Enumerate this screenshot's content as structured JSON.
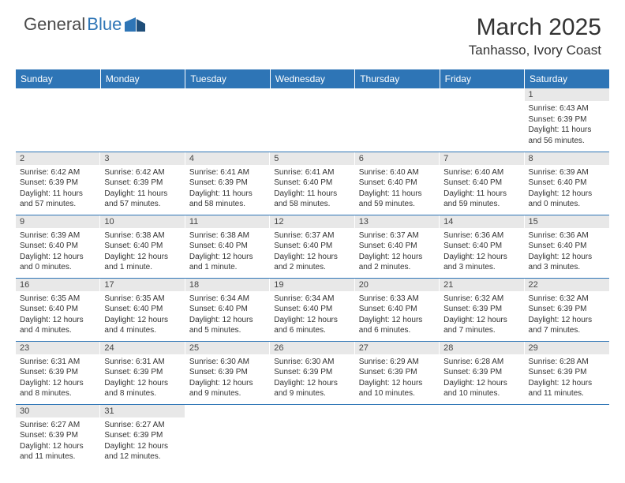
{
  "logo": {
    "text1": "General",
    "text2": "Blue",
    "color1": "#4a4a4a",
    "color2": "#2e75b6"
  },
  "title": "March 2025",
  "location": "Tanhasso, Ivory Coast",
  "headers": [
    "Sunday",
    "Monday",
    "Tuesday",
    "Wednesday",
    "Thursday",
    "Friday",
    "Saturday"
  ],
  "header_bg": "#2e75b6",
  "daynum_bg": "#e8e8e8",
  "border_color": "#2e75b6",
  "weeks": [
    [
      null,
      null,
      null,
      null,
      null,
      null,
      {
        "n": "1",
        "l1": "Sunrise: 6:43 AM",
        "l2": "Sunset: 6:39 PM",
        "l3": "Daylight: 11 hours",
        "l4": "and 56 minutes."
      }
    ],
    [
      {
        "n": "2",
        "l1": "Sunrise: 6:42 AM",
        "l2": "Sunset: 6:39 PM",
        "l3": "Daylight: 11 hours",
        "l4": "and 57 minutes."
      },
      {
        "n": "3",
        "l1": "Sunrise: 6:42 AM",
        "l2": "Sunset: 6:39 PM",
        "l3": "Daylight: 11 hours",
        "l4": "and 57 minutes."
      },
      {
        "n": "4",
        "l1": "Sunrise: 6:41 AM",
        "l2": "Sunset: 6:39 PM",
        "l3": "Daylight: 11 hours",
        "l4": "and 58 minutes."
      },
      {
        "n": "5",
        "l1": "Sunrise: 6:41 AM",
        "l2": "Sunset: 6:40 PM",
        "l3": "Daylight: 11 hours",
        "l4": "and 58 minutes."
      },
      {
        "n": "6",
        "l1": "Sunrise: 6:40 AM",
        "l2": "Sunset: 6:40 PM",
        "l3": "Daylight: 11 hours",
        "l4": "and 59 minutes."
      },
      {
        "n": "7",
        "l1": "Sunrise: 6:40 AM",
        "l2": "Sunset: 6:40 PM",
        "l3": "Daylight: 11 hours",
        "l4": "and 59 minutes."
      },
      {
        "n": "8",
        "l1": "Sunrise: 6:39 AM",
        "l2": "Sunset: 6:40 PM",
        "l3": "Daylight: 12 hours",
        "l4": "and 0 minutes."
      }
    ],
    [
      {
        "n": "9",
        "l1": "Sunrise: 6:39 AM",
        "l2": "Sunset: 6:40 PM",
        "l3": "Daylight: 12 hours",
        "l4": "and 0 minutes."
      },
      {
        "n": "10",
        "l1": "Sunrise: 6:38 AM",
        "l2": "Sunset: 6:40 PM",
        "l3": "Daylight: 12 hours",
        "l4": "and 1 minute."
      },
      {
        "n": "11",
        "l1": "Sunrise: 6:38 AM",
        "l2": "Sunset: 6:40 PM",
        "l3": "Daylight: 12 hours",
        "l4": "and 1 minute."
      },
      {
        "n": "12",
        "l1": "Sunrise: 6:37 AM",
        "l2": "Sunset: 6:40 PM",
        "l3": "Daylight: 12 hours",
        "l4": "and 2 minutes."
      },
      {
        "n": "13",
        "l1": "Sunrise: 6:37 AM",
        "l2": "Sunset: 6:40 PM",
        "l3": "Daylight: 12 hours",
        "l4": "and 2 minutes."
      },
      {
        "n": "14",
        "l1": "Sunrise: 6:36 AM",
        "l2": "Sunset: 6:40 PM",
        "l3": "Daylight: 12 hours",
        "l4": "and 3 minutes."
      },
      {
        "n": "15",
        "l1": "Sunrise: 6:36 AM",
        "l2": "Sunset: 6:40 PM",
        "l3": "Daylight: 12 hours",
        "l4": "and 3 minutes."
      }
    ],
    [
      {
        "n": "16",
        "l1": "Sunrise: 6:35 AM",
        "l2": "Sunset: 6:40 PM",
        "l3": "Daylight: 12 hours",
        "l4": "and 4 minutes."
      },
      {
        "n": "17",
        "l1": "Sunrise: 6:35 AM",
        "l2": "Sunset: 6:40 PM",
        "l3": "Daylight: 12 hours",
        "l4": "and 4 minutes."
      },
      {
        "n": "18",
        "l1": "Sunrise: 6:34 AM",
        "l2": "Sunset: 6:40 PM",
        "l3": "Daylight: 12 hours",
        "l4": "and 5 minutes."
      },
      {
        "n": "19",
        "l1": "Sunrise: 6:34 AM",
        "l2": "Sunset: 6:40 PM",
        "l3": "Daylight: 12 hours",
        "l4": "and 6 minutes."
      },
      {
        "n": "20",
        "l1": "Sunrise: 6:33 AM",
        "l2": "Sunset: 6:40 PM",
        "l3": "Daylight: 12 hours",
        "l4": "and 6 minutes."
      },
      {
        "n": "21",
        "l1": "Sunrise: 6:32 AM",
        "l2": "Sunset: 6:39 PM",
        "l3": "Daylight: 12 hours",
        "l4": "and 7 minutes."
      },
      {
        "n": "22",
        "l1": "Sunrise: 6:32 AM",
        "l2": "Sunset: 6:39 PM",
        "l3": "Daylight: 12 hours",
        "l4": "and 7 minutes."
      }
    ],
    [
      {
        "n": "23",
        "l1": "Sunrise: 6:31 AM",
        "l2": "Sunset: 6:39 PM",
        "l3": "Daylight: 12 hours",
        "l4": "and 8 minutes."
      },
      {
        "n": "24",
        "l1": "Sunrise: 6:31 AM",
        "l2": "Sunset: 6:39 PM",
        "l3": "Daylight: 12 hours",
        "l4": "and 8 minutes."
      },
      {
        "n": "25",
        "l1": "Sunrise: 6:30 AM",
        "l2": "Sunset: 6:39 PM",
        "l3": "Daylight: 12 hours",
        "l4": "and 9 minutes."
      },
      {
        "n": "26",
        "l1": "Sunrise: 6:30 AM",
        "l2": "Sunset: 6:39 PM",
        "l3": "Daylight: 12 hours",
        "l4": "and 9 minutes."
      },
      {
        "n": "27",
        "l1": "Sunrise: 6:29 AM",
        "l2": "Sunset: 6:39 PM",
        "l3": "Daylight: 12 hours",
        "l4": "and 10 minutes."
      },
      {
        "n": "28",
        "l1": "Sunrise: 6:28 AM",
        "l2": "Sunset: 6:39 PM",
        "l3": "Daylight: 12 hours",
        "l4": "and 10 minutes."
      },
      {
        "n": "29",
        "l1": "Sunrise: 6:28 AM",
        "l2": "Sunset: 6:39 PM",
        "l3": "Daylight: 12 hours",
        "l4": "and 11 minutes."
      }
    ],
    [
      {
        "n": "30",
        "l1": "Sunrise: 6:27 AM",
        "l2": "Sunset: 6:39 PM",
        "l3": "Daylight: 12 hours",
        "l4": "and 11 minutes."
      },
      {
        "n": "31",
        "l1": "Sunrise: 6:27 AM",
        "l2": "Sunset: 6:39 PM",
        "l3": "Daylight: 12 hours",
        "l4": "and 12 minutes."
      },
      null,
      null,
      null,
      null,
      null
    ]
  ]
}
